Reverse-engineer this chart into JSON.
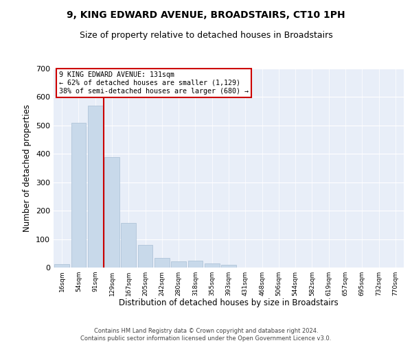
{
  "title": "9, KING EDWARD AVENUE, BROADSTAIRS, CT10 1PH",
  "subtitle": "Size of property relative to detached houses in Broadstairs",
  "xlabel": "Distribution of detached houses by size in Broadstairs",
  "ylabel": "Number of detached properties",
  "bin_labels": [
    "16sqm",
    "54sqm",
    "91sqm",
    "129sqm",
    "167sqm",
    "205sqm",
    "242sqm",
    "280sqm",
    "318sqm",
    "355sqm",
    "393sqm",
    "431sqm",
    "468sqm",
    "506sqm",
    "544sqm",
    "582sqm",
    "619sqm",
    "657sqm",
    "695sqm",
    "732sqm",
    "770sqm"
  ],
  "bar_values": [
    13,
    510,
    570,
    388,
    158,
    80,
    33,
    22,
    25,
    14,
    9,
    1,
    0,
    0,
    0,
    0,
    0,
    0,
    0,
    0,
    0
  ],
  "bar_color": "#c8d9ea",
  "bar_edge_color": "#a8bfd4",
  "highlight_color": "#cc0000",
  "annotation_text": "9 KING EDWARD AVENUE: 131sqm\n← 62% of detached houses are smaller (1,129)\n38% of semi-detached houses are larger (680) →",
  "ylim": [
    0,
    700
  ],
  "yticks": [
    0,
    100,
    200,
    300,
    400,
    500,
    600,
    700
  ],
  "plot_bg_color": "#e8eef8",
  "footer_line1": "Contains HM Land Registry data © Crown copyright and database right 2024.",
  "footer_line2": "Contains public sector information licensed under the Open Government Licence v3.0."
}
